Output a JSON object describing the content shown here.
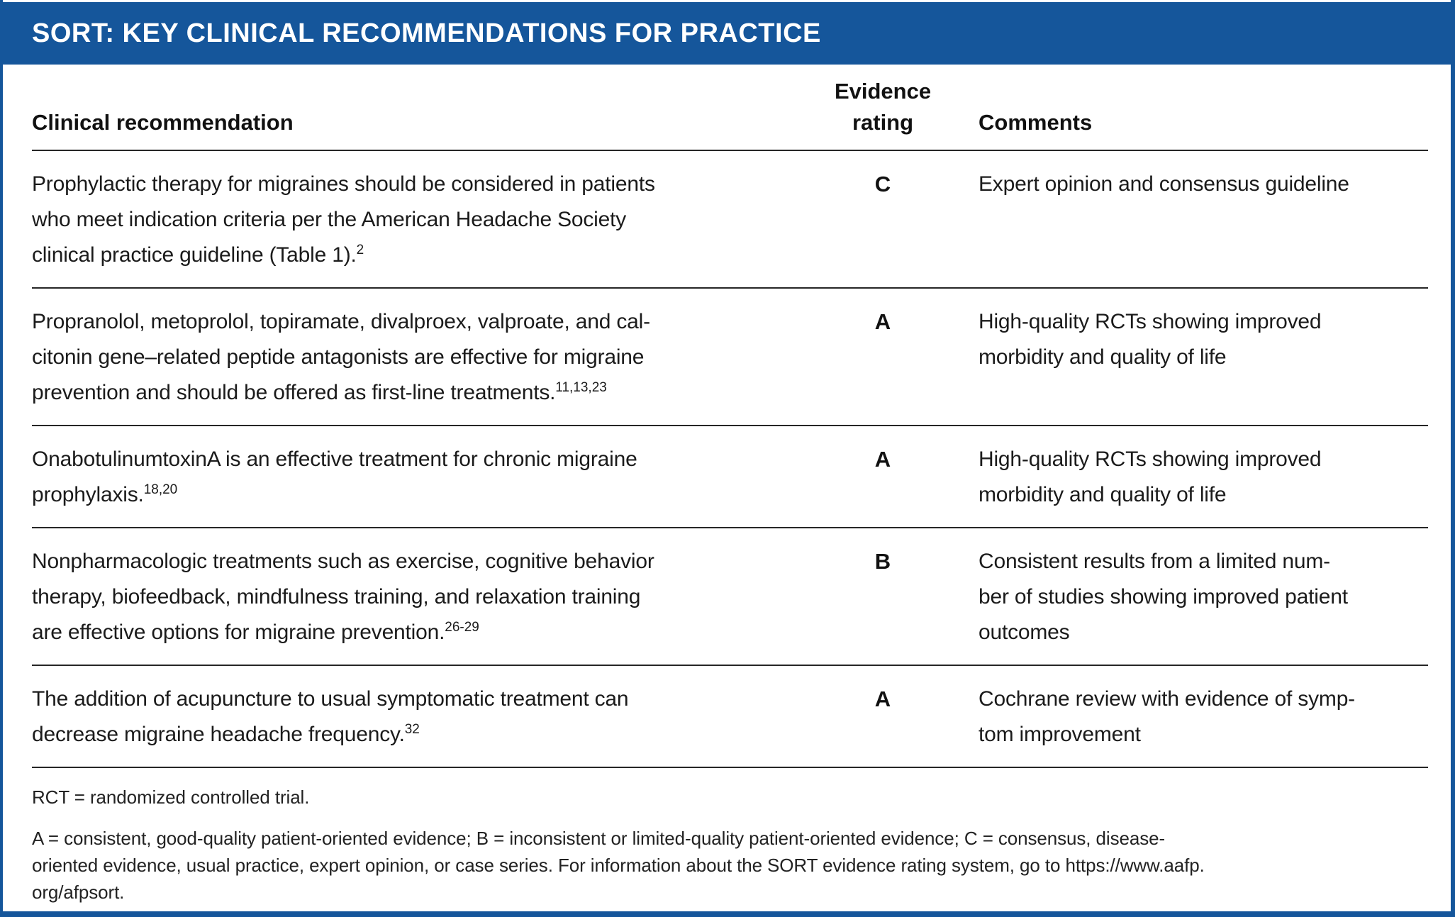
{
  "title": "SORT: KEY CLINICAL RECOMMENDATIONS FOR PRACTICE",
  "colors": {
    "header_bar_blue": "#15569B",
    "border_blue": "#15569B",
    "rule_dark": "#262626",
    "text_dark": "#1b1b1b"
  },
  "table": {
    "header": {
      "clinical_recommendation": "Clinical recommendation",
      "evidence_rating": "Evidence\nrating",
      "comments": "Comments"
    },
    "rows": [
      {
        "recommendation": "Prophylactic therapy for migraines should be considered in patients\nwho meet indication criteria per the American Headache Society\nclinical practice guideline (Table 1).",
        "reference": "2",
        "rating": "C",
        "comment": "Expert opinion and consensus guideline"
      },
      {
        "recommendation": "Propranolol, metoprolol, topiramate, divalproex, valproate, and cal-\ncitonin gene–related peptide antagonists are effective for migraine\nprevention and should be offered as first-line treatments.",
        "reference": "11,13,23",
        "rating": "A",
        "comment": "High-quality RCTs showing improved\nmorbidity and quality of life"
      },
      {
        "recommendation": "OnabotulinumtoxinA is an effective treatment for chronic migraine\nprophylaxis.",
        "reference": "18,20",
        "rating": "A",
        "comment": "High-quality RCTs showing improved\nmorbidity and quality of life"
      },
      {
        "recommendation": "Nonpharmacologic treatments such as exercise, cognitive behavior\ntherapy, biofeedback, mindfulness training, and relaxation training\nare effective options for migraine prevention.",
        "reference": "26-29",
        "rating": "B",
        "comment": "Consistent results from a limited num-\nber of studies showing improved patient\noutcomes"
      },
      {
        "recommendation": "The addition of acupuncture to usual symptomatic treatment can\ndecrease migraine headache frequency.",
        "reference": "32",
        "rating": "A",
        "comment": "Cochrane review with evidence of symp-\ntom improvement"
      }
    ]
  },
  "footnotes": {
    "abbreviation": "RCT = randomized controlled trial.",
    "rating_key": "A = consistent, good-quality patient-oriented evidence; B = inconsistent or limited-quality patient-oriented evidence; C = consensus, disease-\noriented evidence, usual practice, expert opinion, or case series. For information about the SORT evidence rating system, go to https://www.aafp.\norg/afpsort."
  }
}
